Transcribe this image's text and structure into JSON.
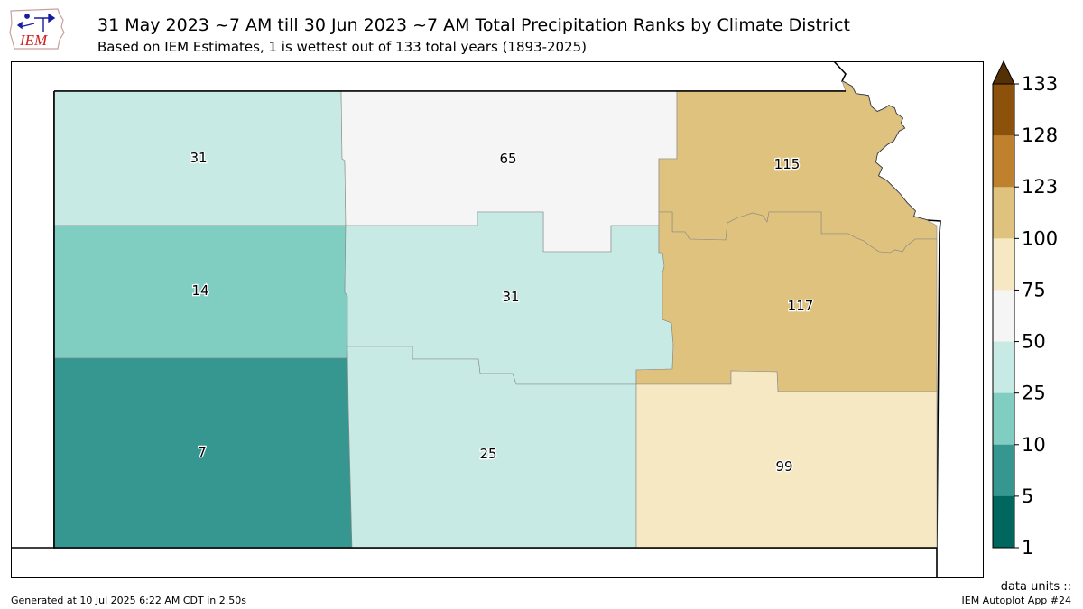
{
  "logo": {
    "text": "IEM",
    "icon": "iowa-state-outline-icon"
  },
  "header": {
    "title": "31 May 2023 ~7 AM till 30 Jun 2023 ~7 AM Total Precipitation Ranks by Climate District",
    "subtitle": "Based on IEM Estimates, 1 is wettest out of 133 total years (1893-2025)"
  },
  "map": {
    "state": "Kansas",
    "districts": [
      {
        "id": "northwest",
        "rank": "31",
        "color": "#c7eae5"
      },
      {
        "id": "north-central",
        "rank": "65",
        "color": "#f5f5f5"
      },
      {
        "id": "northeast",
        "rank": "115",
        "color": "#dfc27d"
      },
      {
        "id": "west-central",
        "rank": "14",
        "color": "#80cdc1"
      },
      {
        "id": "central",
        "rank": "31",
        "color": "#c7eae5"
      },
      {
        "id": "east-central",
        "rank": "117",
        "color": "#dfc27d"
      },
      {
        "id": "southwest",
        "rank": "7",
        "color": "#35978f"
      },
      {
        "id": "south-central",
        "rank": "25",
        "color": "#c7eae5"
      },
      {
        "id": "southeast",
        "rank": "99",
        "color": "#f6e8c3"
      }
    ]
  },
  "colorbar": {
    "ticks": [
      "133",
      "128",
      "123",
      "100",
      "75",
      "50",
      "25",
      "10",
      "5",
      "1"
    ],
    "colors": [
      "#8c510a",
      "#bf812d",
      "#dfc27d",
      "#f6e8c3",
      "#f5f5f5",
      "#c7eae5",
      "#80cdc1",
      "#35978f",
      "#01665e"
    ],
    "extend_color": "#543005"
  },
  "footer": {
    "generated": "Generated at 10 Jul 2025 6:22 AM CDT in 2.50s",
    "units": "data units ::",
    "app": "IEM Autoplot App #24"
  }
}
